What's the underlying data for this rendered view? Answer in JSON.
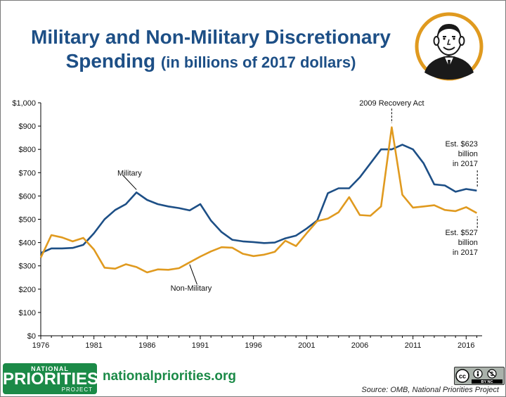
{
  "header": {
    "title_line1": "Military and Non-Military Discretionary",
    "title_line2": "Spending",
    "title_sub": "(in billions of 2017 dollars)"
  },
  "colors": {
    "military": "#1d4f86",
    "non_military": "#e09a1f",
    "title": "#1d4f86",
    "brand_green": "#1b8a47"
  },
  "chart_data": {
    "type": "line",
    "title": "Military and Non-Military Discretionary Spending (in billions of 2017 dollars)",
    "xlabel": "",
    "ylabel": "",
    "x": [
      1976,
      1977,
      1978,
      1979,
      1980,
      1981,
      1982,
      1983,
      1984,
      1985,
      1986,
      1987,
      1988,
      1989,
      1990,
      1991,
      1992,
      1993,
      1994,
      1995,
      1996,
      1997,
      1998,
      1999,
      2000,
      2001,
      2002,
      2003,
      2004,
      2005,
      2006,
      2007,
      2008,
      2009,
      2010,
      2011,
      2012,
      2013,
      2014,
      2015,
      2016,
      2017
    ],
    "series": [
      {
        "name": "Military",
        "values": [
          355,
          375,
          375,
          377,
          390,
          440,
          500,
          540,
          565,
          615,
          583,
          565,
          555,
          548,
          538,
          565,
          495,
          445,
          412,
          405,
          402,
          398,
          400,
          418,
          430,
          460,
          495,
          612,
          633,
          633,
          680,
          740,
          800,
          800,
          820,
          800,
          740,
          650,
          645,
          618,
          630,
          623
        ]
      },
      {
        "name": "Non-Military",
        "values": [
          335,
          432,
          422,
          405,
          420,
          370,
          292,
          288,
          307,
          295,
          272,
          285,
          283,
          290,
          315,
          340,
          362,
          380,
          378,
          352,
          342,
          348,
          360,
          408,
          385,
          440,
          492,
          503,
          530,
          595,
          518,
          515,
          555,
          895,
          605,
          550,
          555,
          560,
          540,
          535,
          552,
          527
        ]
      }
    ],
    "xlim": [
      1976,
      2017.5
    ],
    "ylim": [
      0,
      1000
    ],
    "x_ticks": [
      "1976",
      "1981",
      "1986",
      "1991",
      "1996",
      "2001",
      "2006",
      "2011",
      "2016"
    ],
    "y_ticks": [
      "$0",
      "$100",
      "$200",
      "$300",
      "$400",
      "$500",
      "$600",
      "$700",
      "$800",
      "$900",
      "$1,000"
    ],
    "annotations": {
      "military_label": "Military",
      "non_military_label": "Non-Military",
      "recovery_act": "2009 Recovery Act",
      "est_military": [
        "Est. $623",
        "billion",
        "in 2017"
      ],
      "est_non_military": [
        "Est. $527",
        "billion",
        "in 2017"
      ]
    },
    "grid": false,
    "legend": "none"
  },
  "footer": {
    "logo_line1": "NATIONAL",
    "logo_line2": "PRIORITIES",
    "logo_line3": "PROJECT",
    "website": "nationalpriorities.org",
    "source": "Source: OMB, National Priorities Project",
    "license_badge": "cc-by-nc-icon",
    "license_text": "BY NC"
  },
  "icons": {
    "portrait": "president-portrait-icon"
  }
}
